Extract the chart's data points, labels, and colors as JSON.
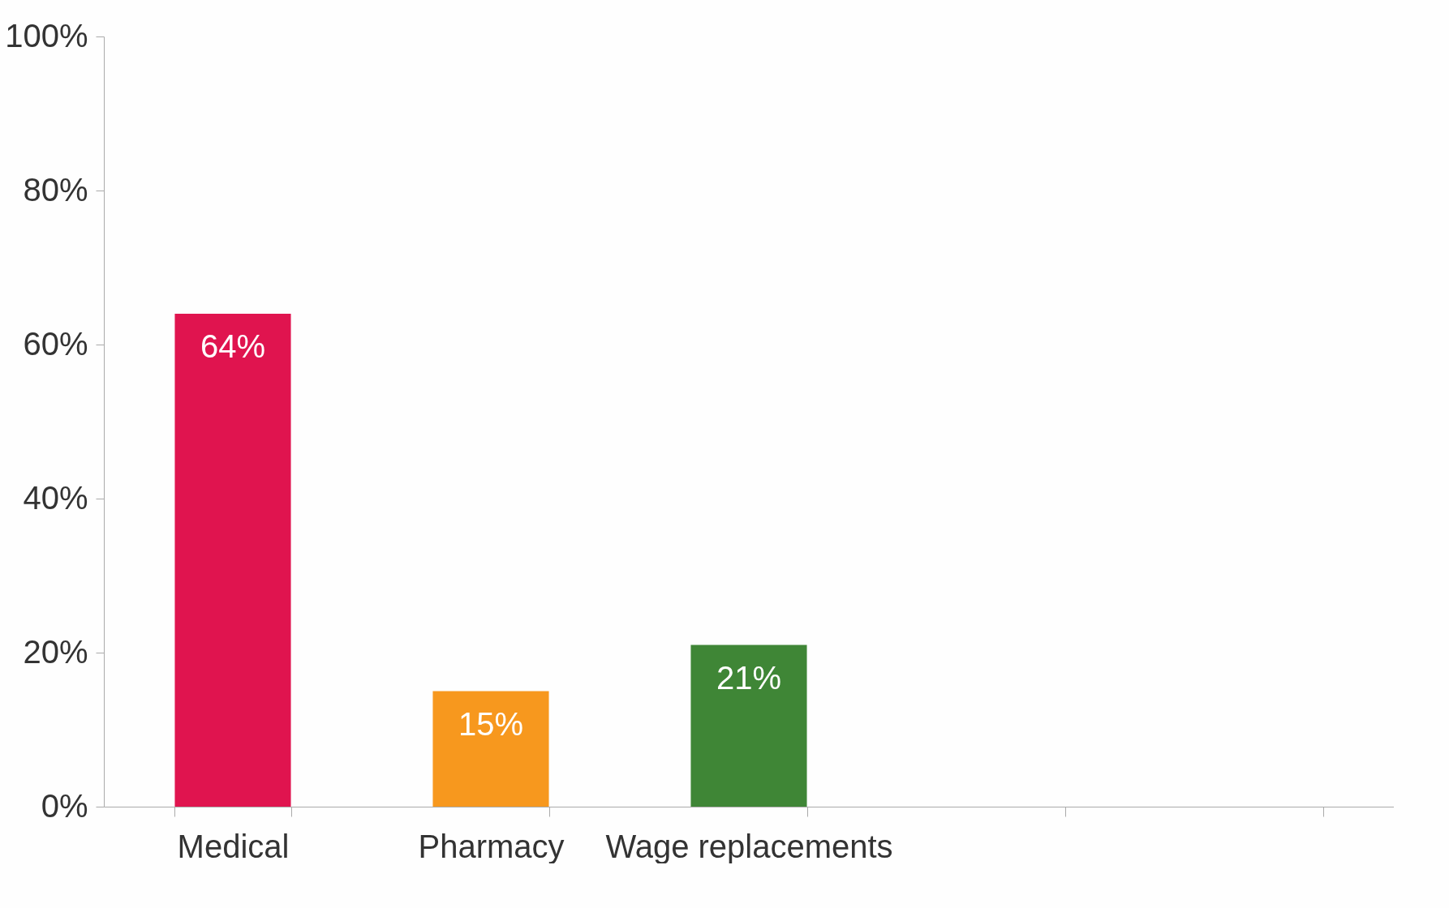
{
  "chart_data": {
    "type": "bar",
    "categories": [
      "Medical",
      "Pharmacy",
      "Wage replacements",
      null,
      null
    ],
    "values": [
      64,
      15,
      21,
      null,
      null
    ],
    "colors": [
      "#e0144f",
      "#f7981e",
      "#3f8636",
      "#ffffff",
      "#ffffff"
    ],
    "value_labels": [
      "64%",
      "15%",
      "21%",
      null,
      null
    ],
    "ylim": [
      0,
      100
    ],
    "yticks": [
      {
        "value": 0,
        "label": "0%"
      },
      {
        "value": 20,
        "label": "20%"
      },
      {
        "value": 40,
        "label": "40%"
      },
      {
        "value": 60,
        "label": "60%"
      },
      {
        "value": 80,
        "label": "80%"
      },
      {
        "value": 100,
        "label": "100%"
      }
    ],
    "grid": false,
    "legend": false
  }
}
